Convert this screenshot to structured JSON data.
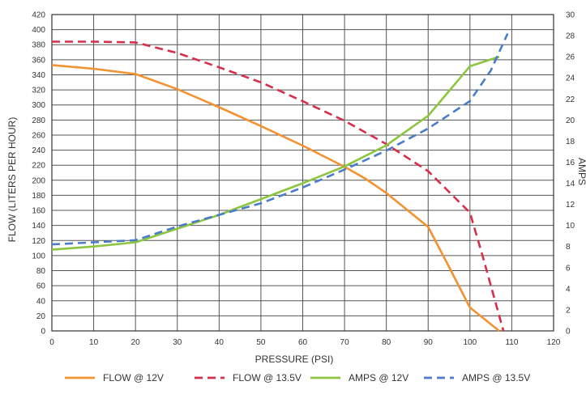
{
  "chart_data": {
    "type": "line",
    "title": "",
    "xlabel": "PRESSURE (PSI)",
    "ylabel": "FLOW (LITERS PER HOUR)",
    "y2label": "AMPS",
    "xlim": [
      0,
      120
    ],
    "ylim": [
      0,
      420
    ],
    "y2lim": [
      0,
      30
    ],
    "x_ticks": [
      0,
      10,
      20,
      30,
      40,
      50,
      60,
      70,
      80,
      90,
      100,
      110,
      120
    ],
    "y_ticks": [
      0,
      20,
      40,
      60,
      80,
      100,
      120,
      140,
      160,
      180,
      200,
      220,
      240,
      260,
      280,
      300,
      320,
      340,
      360,
      380,
      400,
      420
    ],
    "y2_ticks": [
      0,
      2,
      4,
      6,
      8,
      10,
      12,
      14,
      16,
      18,
      20,
      22,
      24,
      26,
      28,
      30
    ],
    "grid": true,
    "legend_position": "bottom",
    "series": [
      {
        "name": "FLOW @ 12V",
        "axis": "left",
        "color": "#f39230",
        "dash": false,
        "points": [
          [
            0,
            353
          ],
          [
            10,
            348
          ],
          [
            20,
            341
          ],
          [
            30,
            321
          ],
          [
            40,
            297
          ],
          [
            50,
            272
          ],
          [
            60,
            246
          ],
          [
            70,
            218
          ],
          [
            75,
            202
          ],
          [
            80,
            183
          ],
          [
            90,
            138
          ],
          [
            95,
            85
          ],
          [
            100,
            31
          ],
          [
            107,
            0
          ]
        ]
      },
      {
        "name": "FLOW @ 13.5V",
        "axis": "left",
        "color": "#d62f4b",
        "dash": true,
        "points": [
          [
            0,
            384
          ],
          [
            10,
            384
          ],
          [
            20,
            383
          ],
          [
            30,
            369
          ],
          [
            40,
            350
          ],
          [
            50,
            330
          ],
          [
            60,
            305
          ],
          [
            70,
            279
          ],
          [
            80,
            248
          ],
          [
            90,
            212
          ],
          [
            100,
            157
          ],
          [
            103,
            100
          ],
          [
            106,
            40
          ],
          [
            108,
            0
          ]
        ]
      },
      {
        "name": "AMPS @ 12V",
        "axis": "right",
        "color": "#8cc63f",
        "dash": false,
        "points": [
          [
            0,
            7.7
          ],
          [
            10,
            8.0
          ],
          [
            20,
            8.4
          ],
          [
            30,
            9.7
          ],
          [
            40,
            11.0
          ],
          [
            50,
            12.5
          ],
          [
            60,
            14.0
          ],
          [
            70,
            15.6
          ],
          [
            80,
            17.6
          ],
          [
            90,
            20.4
          ],
          [
            100,
            25.1
          ],
          [
            107,
            26.0
          ]
        ]
      },
      {
        "name": "AMPS @ 13.5V",
        "axis": "right",
        "color": "#4a7cc9",
        "dash": true,
        "points": [
          [
            0,
            8.2
          ],
          [
            10,
            8.4
          ],
          [
            20,
            8.6
          ],
          [
            30,
            9.9
          ],
          [
            40,
            11.0
          ],
          [
            50,
            12.1
          ],
          [
            60,
            13.6
          ],
          [
            70,
            15.3
          ],
          [
            80,
            17.1
          ],
          [
            90,
            19.2
          ],
          [
            100,
            21.8
          ],
          [
            105,
            24.7
          ],
          [
            109,
            28.2
          ]
        ]
      }
    ]
  }
}
